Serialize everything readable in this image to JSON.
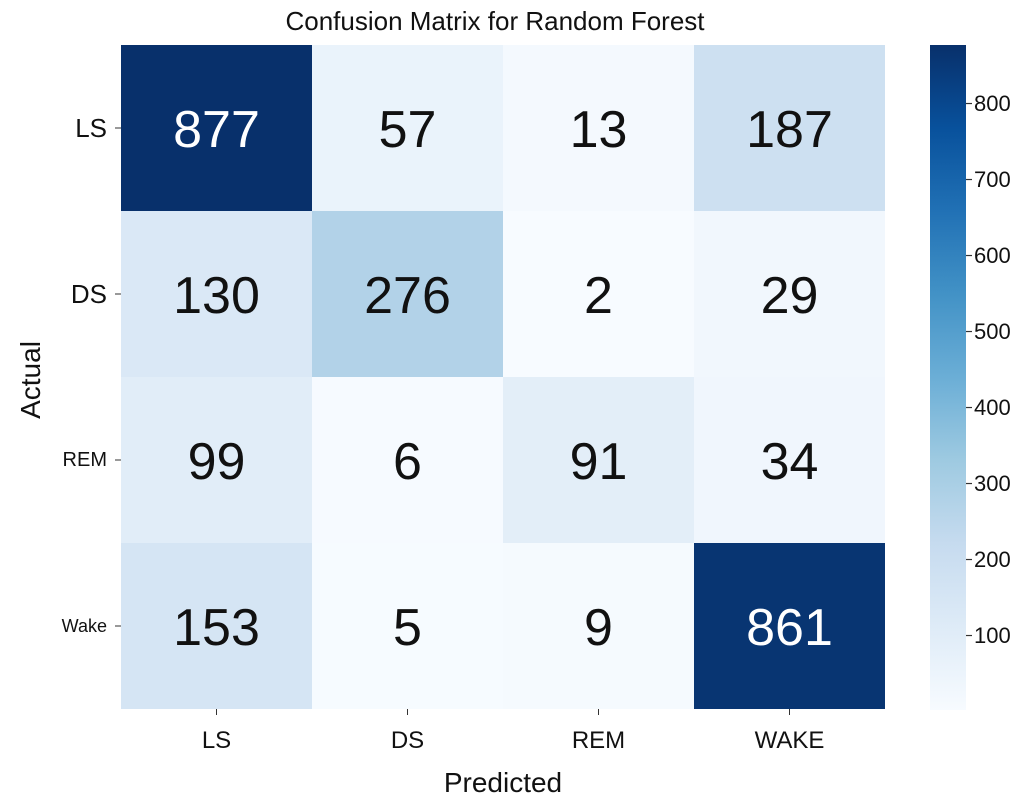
{
  "chart_data": {
    "type": "heatmap",
    "title": "Confusion Matrix for Random Forest",
    "xlabel": "Predicted",
    "ylabel": "Actual",
    "x_categories": [
      "LS",
      "DS",
      "REM",
      "WAKE"
    ],
    "y_categories": [
      "LS",
      "DS",
      "REM",
      "Wake"
    ],
    "values": [
      [
        877,
        57,
        13,
        187
      ],
      [
        130,
        276,
        2,
        29
      ],
      [
        99,
        6,
        91,
        34
      ],
      [
        153,
        5,
        9,
        861
      ]
    ],
    "colorbar": {
      "range": [
        2,
        877
      ],
      "ticks": [
        100,
        200,
        300,
        400,
        500,
        600,
        700,
        800
      ],
      "colormap": "Blues",
      "colors": [
        "#f7fbff",
        "#deebf7",
        "#c6dbef",
        "#9ecae1",
        "#6baed6",
        "#4292c6",
        "#2171b5",
        "#08519c",
        "#08306b"
      ]
    }
  }
}
